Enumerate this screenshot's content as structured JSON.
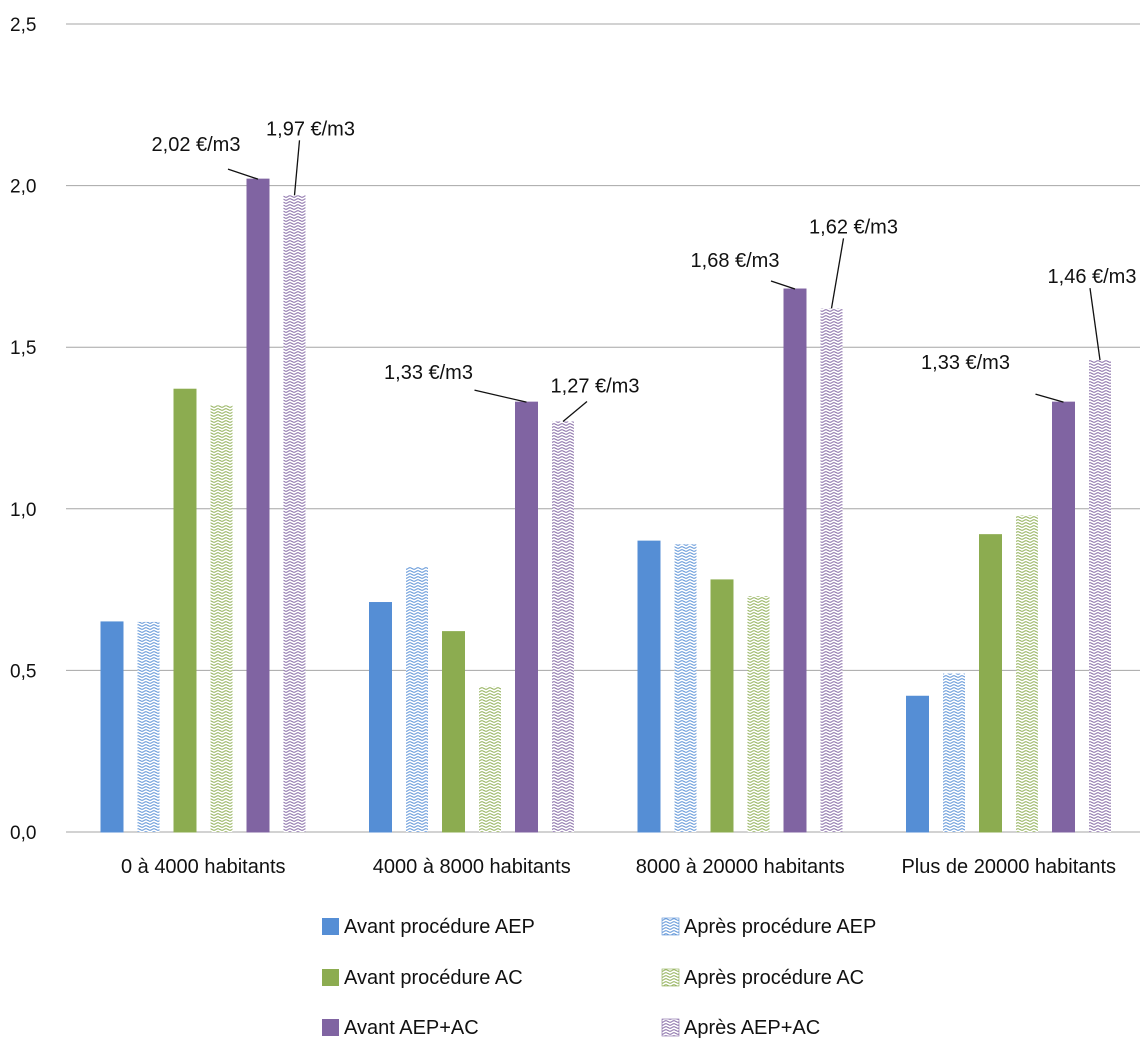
{
  "chart_data": {
    "type": "bar",
    "title": "",
    "xlabel": "",
    "ylabel": "",
    "ylim": [
      0,
      2.5
    ],
    "y_ticks": [
      "0,0",
      "0,5",
      "1,0",
      "1,5",
      "2,0",
      "2,5"
    ],
    "grid": true,
    "legend_position": "bottom",
    "categories": [
      "0 à 4000 habitants",
      "4000 à 8000 habitants",
      "8000 à 20000 habitants",
      "Plus de 20000 habitants"
    ],
    "series": [
      {
        "name": "Avant procédure AEP",
        "values": [
          0.65,
          0.71,
          0.9,
          0.42
        ],
        "color": "#558ed5",
        "pattern": "solid"
      },
      {
        "name": "Après procédure AEP",
        "values": [
          0.65,
          0.82,
          0.89,
          0.49
        ],
        "color": "#558ed5",
        "pattern": "wave"
      },
      {
        "name": "Avant procédure AC",
        "values": [
          1.37,
          0.62,
          0.78,
          0.92
        ],
        "color": "#8cac50",
        "pattern": "solid"
      },
      {
        "name": "Après procédure AC",
        "values": [
          1.32,
          0.45,
          0.73,
          0.98
        ],
        "color": "#8cac50",
        "pattern": "wave"
      },
      {
        "name": "Avant AEP+AC",
        "values": [
          2.02,
          1.33,
          1.68,
          1.33
        ],
        "color": "#8064a2",
        "pattern": "solid"
      },
      {
        "name": "Après AEP+AC",
        "values": [
          1.97,
          1.27,
          1.62,
          1.46
        ],
        "color": "#8064a2",
        "pattern": "wave"
      }
    ],
    "annotations": [
      {
        "category": 0,
        "series": 4,
        "text": "2,02 €/m3"
      },
      {
        "category": 0,
        "series": 5,
        "text": "1,97 €/m3"
      },
      {
        "category": 1,
        "series": 4,
        "text": "1,33 €/m3"
      },
      {
        "category": 1,
        "series": 5,
        "text": "1,27 €/m3"
      },
      {
        "category": 2,
        "series": 4,
        "text": "1,68 €/m3"
      },
      {
        "category": 2,
        "series": 5,
        "text": "1,62 €/m3"
      },
      {
        "category": 3,
        "series": 4,
        "text": "1,33 €/m3"
      },
      {
        "category": 3,
        "series": 5,
        "text": "1,46 €/m3"
      }
    ]
  }
}
